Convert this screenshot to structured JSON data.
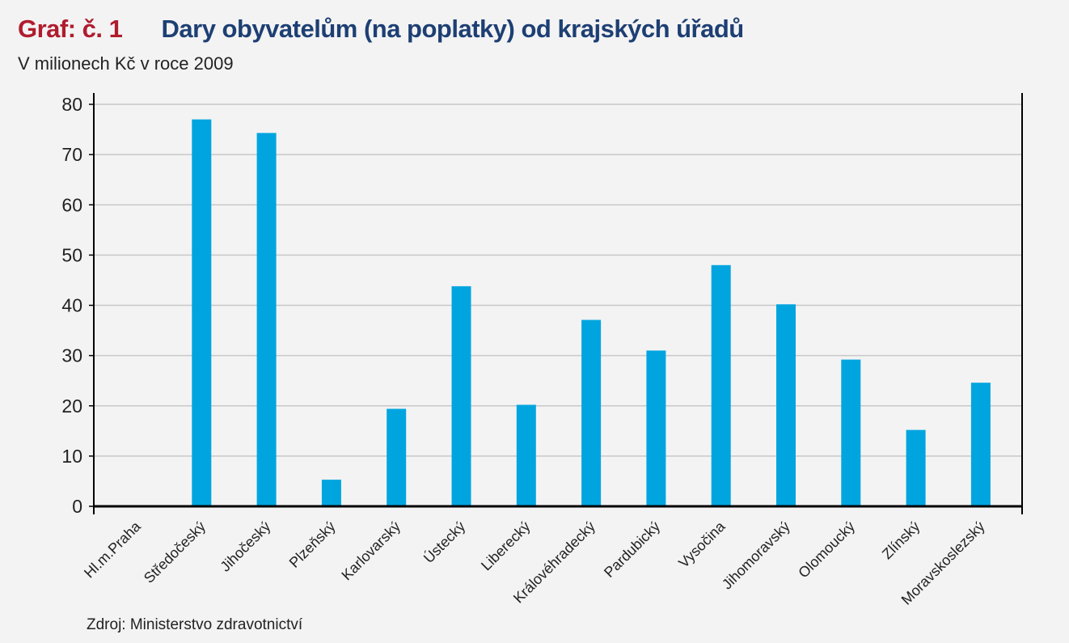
{
  "header": {
    "graf_label": "Graf: č. 1",
    "title": "Dary obyvatelům (na poplatky) od krajských úřadů",
    "subtitle": "V milionech Kč v roce 2009"
  },
  "footer": {
    "source": "Zdroj: Ministerstvo zdravotnictví"
  },
  "colors": {
    "bar": "#00a5df",
    "grid": "#c8c8c8",
    "axis": "#000000",
    "graf_label": "#b01c2e",
    "title": "#1d3f73"
  },
  "chart_data": {
    "type": "bar",
    "title": "Dary obyvatelům (na poplatky) od krajských úřadů",
    "subtitle": "V milionech Kč v roce 2009",
    "xlabel": "",
    "ylabel": "",
    "ylim": [
      0,
      80
    ],
    "yticks": [
      0,
      10,
      20,
      30,
      40,
      50,
      60,
      70,
      80
    ],
    "grid": true,
    "categories": [
      "Hl.m.Praha",
      "Středočeský",
      "Jihočeský",
      "Plzeňský",
      "Karlovarský",
      "Ústecký",
      "Liberecký",
      "Královéhradecký",
      "Pardubický",
      "Vysočina",
      "Jihomoravský",
      "Olomoucký",
      "Zlínský",
      "Moravskoslezský"
    ],
    "values": [
      0,
      77,
      74.3,
      5.3,
      19.4,
      43.8,
      20.2,
      37.1,
      31,
      48,
      40.2,
      29.2,
      15.2,
      24.6
    ]
  }
}
